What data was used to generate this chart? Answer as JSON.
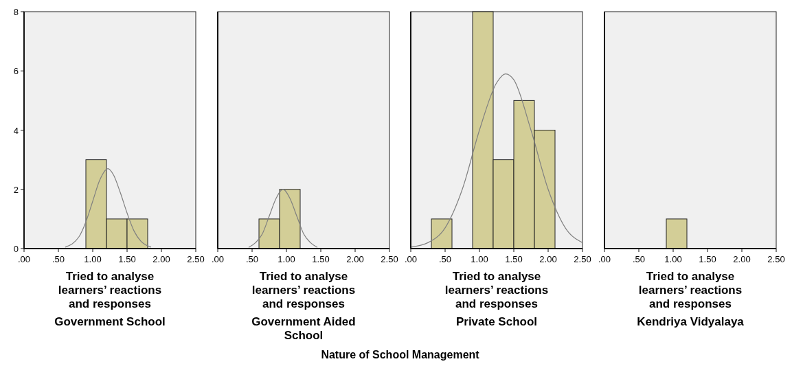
{
  "chart_data": [
    {
      "type": "histogram",
      "title": "Government School",
      "xlabel": "Tried to analyse learners’ reactions and responses",
      "bins": [
        0.9,
        1.2,
        1.5,
        1.8
      ],
      "values": [
        3,
        1,
        1
      ],
      "color": "#d3ce97",
      "xlim": [
        0,
        2.5
      ],
      "ylim": [
        0,
        8
      ],
      "xticks": [
        {
          "value": 0,
          "label": ".00"
        },
        {
          "value": 0.5,
          "label": ".50"
        },
        {
          "value": 1,
          "label": "1.00"
        },
        {
          "value": 1.5,
          "label": "1.50"
        },
        {
          "value": 2,
          "label": "2.00"
        },
        {
          "value": 2.5,
          "label": "2.50"
        }
      ],
      "yticks": [
        0,
        2,
        4,
        6,
        8
      ],
      "annotations": [
        "Nature of School Management"
      ],
      "series": [
        {
          "type": "line",
          "color": "#808080",
          "x": [
            0.6,
            0.8,
            0.9,
            1.0,
            1.1,
            1.22,
            1.3,
            1.4,
            1.5,
            1.6,
            1.7,
            1.85
          ],
          "values": [
            0.05,
            0.4,
            0.9,
            1.6,
            2.3,
            2.7,
            2.5,
            1.9,
            1.2,
            0.6,
            0.25,
            0.05
          ]
        }
      ]
    },
    {
      "type": "histogram",
      "title": "Government Aided School",
      "xlabel": "Tried to analyse learners’ reactions and responses",
      "bins": [
        0.6,
        0.9,
        1.2
      ],
      "values": [
        1,
        2
      ],
      "color": "#d3ce97",
      "xlim": [
        0,
        2.5
      ],
      "ylim": [
        0,
        8
      ],
      "xticks": [
        {
          "value": 0,
          "label": ".00"
        },
        {
          "value": 0.5,
          "label": ".50"
        },
        {
          "value": 1,
          "label": "1.00"
        },
        {
          "value": 1.5,
          "label": "1.50"
        },
        {
          "value": 2,
          "label": "2.00"
        },
        {
          "value": 2.5,
          "label": "2.50"
        }
      ],
      "tick_labels": "x",
      "series": [
        {
          "type": "line",
          "color": "#808080",
          "x": [
            0.45,
            0.55,
            0.65,
            0.75,
            0.85,
            0.95,
            1.05,
            1.15,
            1.25,
            1.35,
            1.45
          ],
          "values": [
            0.04,
            0.2,
            0.5,
            1.1,
            1.7,
            2.0,
            1.7,
            1.1,
            0.5,
            0.2,
            0.04
          ]
        }
      ]
    },
    {
      "type": "histogram",
      "title": "Private School",
      "xlabel": "Tried to analyse learners’ reactions and responses",
      "bins": [
        0.3,
        0.6,
        0.9,
        1.2,
        1.5,
        1.8,
        2.1
      ],
      "values": [
        1,
        0,
        8,
        3,
        5,
        4
      ],
      "color": "#d3ce97",
      "xlim": [
        0,
        2.5
      ],
      "ylim": [
        0,
        8
      ],
      "xticks": [
        {
          "value": 0,
          "label": ".00"
        },
        {
          "value": 0.5,
          "label": ".50"
        },
        {
          "value": 1,
          "label": "1.00"
        },
        {
          "value": 1.5,
          "label": "1.50"
        },
        {
          "value": 2,
          "label": "2.00"
        },
        {
          "value": 2.5,
          "label": "2.50"
        }
      ],
      "tick_labels": "x",
      "series": [
        {
          "type": "line",
          "color": "#808080",
          "x": [
            0,
            0.25,
            0.5,
            0.75,
            1.0,
            1.25,
            1.38,
            1.5,
            1.75,
            2.0,
            2.25,
            2.5
          ],
          "values": [
            0.05,
            0.2,
            0.7,
            2.0,
            4.0,
            5.6,
            5.9,
            5.7,
            4.0,
            2.0,
            0.7,
            0.2
          ]
        }
      ]
    },
    {
      "type": "histogram",
      "title": "Kendriya Vidyalaya",
      "xlabel": "Tried to analyse learners’ reactions and responses",
      "bins": [
        0.9,
        1.2
      ],
      "values": [
        1
      ],
      "color": "#d3ce97",
      "xlim": [
        0,
        2.5
      ],
      "ylim": [
        0,
        8
      ],
      "xticks": [
        {
          "value": 0,
          "label": ".00"
        },
        {
          "value": 0.5,
          "label": ".50"
        },
        {
          "value": 1,
          "label": "1.00"
        },
        {
          "value": 1.5,
          "label": "1.50"
        },
        {
          "value": 2,
          "label": "2.00"
        },
        {
          "value": 2.5,
          "label": "2.50"
        }
      ],
      "tick_labels": "x"
    }
  ]
}
